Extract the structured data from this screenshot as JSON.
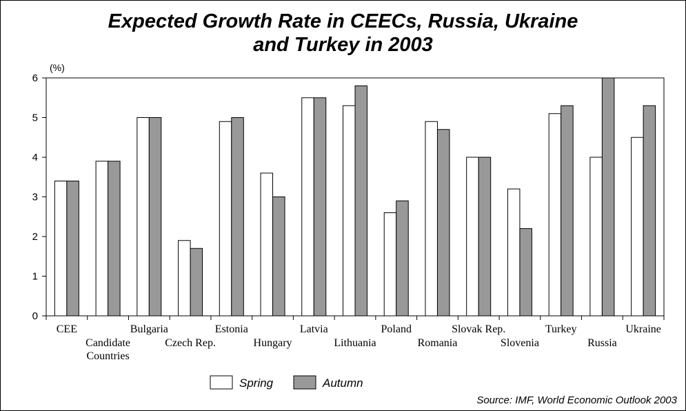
{
  "chart_data": {
    "type": "bar",
    "title_line1": "Expected Growth Rate in CEECs, Russia, Ukraine",
    "title_line2": "and Turkey in 2003",
    "y_unit": "(%)",
    "ylim": [
      0,
      6
    ],
    "y_ticks": [
      "0",
      "1",
      "2",
      "3",
      "4",
      "5",
      "6"
    ],
    "categories": [
      "CEE",
      "Candidate Countries",
      "Bulgaria",
      "Czech Rep.",
      "Estonia",
      "Hungary",
      "Latvia",
      "Lithuania",
      "Poland",
      "Romania",
      "Slovak Rep.",
      "Slovenia",
      "Turkey",
      "Russia",
      "Ukraine"
    ],
    "series": [
      {
        "name": "Spring",
        "color": "#ffffff",
        "values": [
          3.4,
          3.9,
          5.0,
          1.9,
          4.9,
          3.6,
          5.5,
          5.3,
          2.6,
          4.9,
          4.0,
          3.2,
          5.1,
          4.0,
          4.5
        ]
      },
      {
        "name": "Autumn",
        "color": "#999999",
        "values": [
          3.4,
          3.9,
          5.0,
          1.7,
          5.0,
          3.0,
          5.5,
          5.8,
          2.9,
          4.7,
          4.0,
          2.2,
          5.3,
          6.0,
          5.3
        ]
      }
    ],
    "legend_position": "bottom-center",
    "grid": false,
    "source": "Source: IMF, World Economic Outlook 2003"
  }
}
